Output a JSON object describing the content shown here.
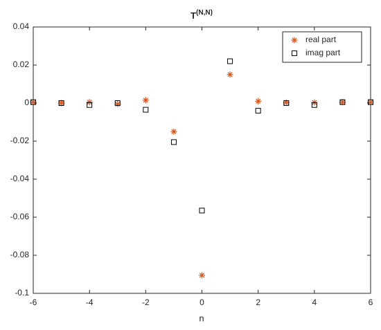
{
  "chart_data": {
    "type": "scatter",
    "title": "T",
    "title_superscript": "(N,N)",
    "x_label": "n",
    "x": [
      -6,
      -5,
      -4,
      -3,
      -2,
      -1,
      0,
      1,
      2,
      3,
      4,
      5,
      6
    ],
    "series": [
      {
        "name": "real part",
        "color": "#d95319",
        "marker": "asterisk",
        "values": [
          0.0005,
          0,
          0.0005,
          -0.0005,
          0.0015,
          -0.015,
          -0.0905,
          0.015,
          0.001,
          0.0003,
          0.0003,
          0.0005,
          0.0005
        ]
      },
      {
        "name": "imag part",
        "color": "#000000",
        "marker": "square",
        "values": [
          0.0005,
          0,
          -0.001,
          0,
          -0.0035,
          -0.0205,
          -0.0565,
          0.022,
          -0.004,
          0,
          -0.001,
          0.0005,
          0.0005
        ]
      }
    ],
    "xlim": [
      -6,
      6
    ],
    "xticks": [
      -6,
      -4,
      -2,
      0,
      2,
      4,
      6
    ],
    "ylim": [
      -0.1,
      0.04
    ],
    "yticks": [
      -0.1,
      -0.08,
      -0.06,
      -0.04,
      -0.02,
      0,
      0.02,
      0.04
    ],
    "grid": false,
    "legend": "northeast"
  }
}
